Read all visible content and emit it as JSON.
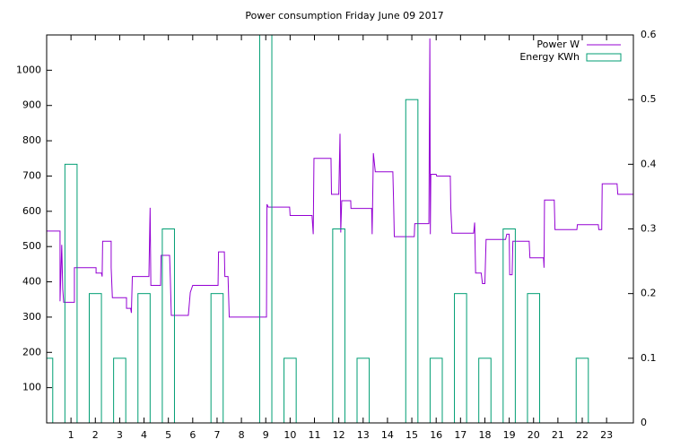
{
  "chart_data": {
    "type": "line",
    "title": "Power consumption Friday June 09 2017",
    "xlim": [
      0,
      24.1
    ],
    "xticks": [
      1,
      2,
      3,
      4,
      5,
      6,
      7,
      8,
      9,
      10,
      11,
      12,
      13,
      14,
      15,
      16,
      17,
      18,
      19,
      20,
      21,
      22,
      23
    ],
    "ylim": [
      0,
      1100
    ],
    "yticks": [
      100,
      200,
      300,
      400,
      500,
      600,
      700,
      800,
      900,
      1000
    ],
    "y2lim": [
      0,
      0.6
    ],
    "y2ticks": [
      0,
      0.1,
      0.2,
      0.3,
      0.4,
      0.5,
      0.6
    ],
    "legend": "top-right",
    "box_width": 0.5,
    "series": [
      {
        "name": "Power W",
        "type": "line",
        "color": "#9400d3",
        "x": [
          0,
          0.55,
          0.55,
          0.62,
          0.66,
          0.7,
          1.14,
          1.14,
          2.03,
          2.03,
          2.25,
          2.28,
          2.3,
          2.65,
          2.65,
          2.7,
          3.28,
          3.28,
          3.45,
          3.48,
          3.52,
          4.2,
          4.25,
          4.28,
          4.68,
          4.7,
          5.05,
          5.08,
          5.12,
          5.82,
          5.9,
          6.0,
          7.04,
          7.06,
          7.3,
          7.32,
          7.45,
          7.5,
          9.03,
          9.05,
          9.1,
          9.98,
          10.0,
          10.9,
          10.95,
          10.98,
          11.68,
          11.7,
          12.0,
          12.05,
          12.08,
          12.12,
          12.49,
          12.5,
          13.35,
          13.37,
          13.42,
          13.5,
          14.22,
          14.25,
          14.28,
          15.1,
          15.12,
          15.7,
          15.74,
          15.76,
          15.78,
          16.0,
          16.02,
          16.58,
          16.6,
          16.65,
          17.54,
          17.58,
          17.62,
          17.85,
          17.9,
          18.0,
          18.05,
          18.85,
          18.9,
          19.0,
          19.02,
          19.12,
          19.15,
          19.82,
          19.85,
          20.41,
          20.43,
          20.45,
          20.85,
          20.88,
          21.78,
          21.8,
          22.66,
          22.68,
          22.8,
          22.82,
          23.43,
          23.46,
          24.1
        ],
        "values": [
          544,
          544,
          345,
          505,
          380,
          342,
          342,
          440,
          440,
          425,
          425,
          415,
          515,
          515,
          440,
          355,
          355,
          325,
          325,
          312,
          415,
          415,
          610,
          390,
          390,
          475,
          475,
          410,
          305,
          305,
          370,
          390,
          390,
          485,
          485,
          415,
          415,
          300,
          300,
          620,
          612,
          612,
          588,
          588,
          535,
          750,
          750,
          648,
          648,
          820,
          540,
          630,
          630,
          608,
          608,
          535,
          765,
          712,
          712,
          630,
          528,
          528,
          565,
          565,
          1090,
          535,
          705,
          705,
          700,
          700,
          610,
          538,
          538,
          568,
          425,
          425,
          395,
          395,
          520,
          520,
          535,
          535,
          420,
          420,
          515,
          515,
          468,
          468,
          440,
          632,
          632,
          548,
          548,
          562,
          562,
          548,
          548,
          678,
          678,
          648,
          648
        ]
      },
      {
        "name": "Energy KWh",
        "type": "bar",
        "color": "#009e73",
        "axis": "y2",
        "x": [
          0,
          1,
          2,
          3,
          4,
          5,
          6,
          7,
          8,
          9,
          10,
          11,
          12,
          13,
          14,
          15,
          16,
          17,
          18,
          19,
          20,
          21,
          22,
          23
        ],
        "values": [
          0.1,
          0.4,
          0.2,
          0.1,
          0.2,
          0.3,
          0,
          0.2,
          0,
          0.6,
          0.1,
          0,
          0.3,
          0.1,
          0,
          0.5,
          0.1,
          0.2,
          0.1,
          0.3,
          0.2,
          0,
          0.1,
          0
        ]
      }
    ]
  }
}
